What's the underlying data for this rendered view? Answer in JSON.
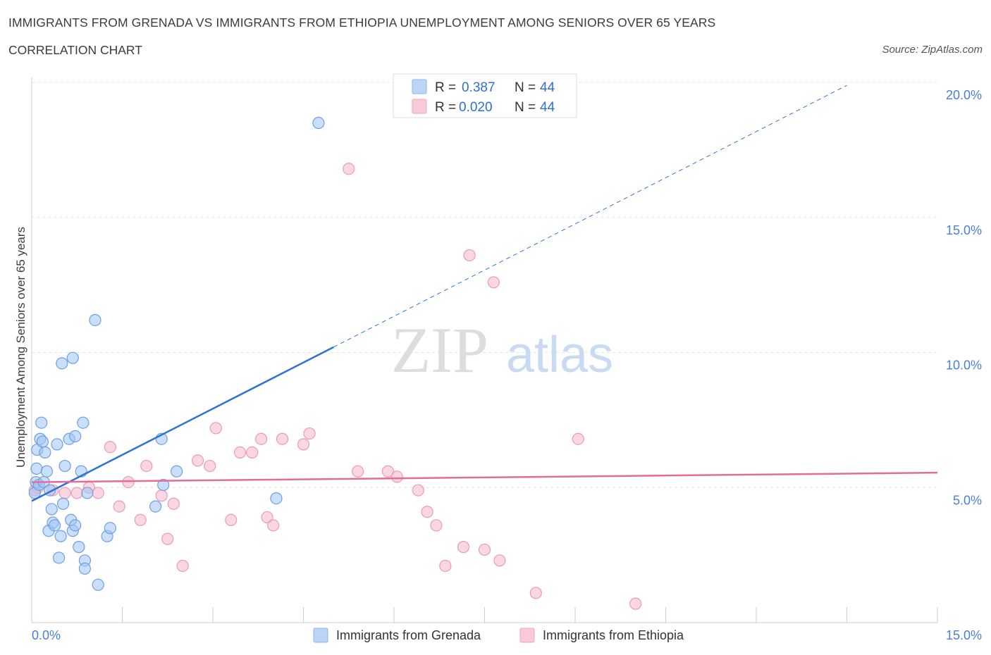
{
  "title": "IMMIGRANTS FROM GRENADA VS IMMIGRANTS FROM ETHIOPIA UNEMPLOYMENT AMONG SENIORS OVER 65 YEARS",
  "subtitle": "CORRELATION CHART",
  "source": "Source: ZipAtlas.com",
  "watermark": {
    "zip": "ZIP",
    "atlas": "atlas"
  },
  "legend": {
    "r_label": "R =",
    "n_label": "N =",
    "series": [
      {
        "name": "Immigrants from Grenada",
        "r": "0.387",
        "n": "44"
      },
      {
        "name": "Immigrants from Ethiopia",
        "r": "0.020",
        "n": "44"
      }
    ]
  },
  "chart_data": {
    "type": "scatter",
    "title": "IMMIGRANTS FROM GRENADA VS IMMIGRANTS FROM ETHIOPIA UNEMPLOYMENT AMONG SENIORS OVER 65 YEARS",
    "xlabel": "",
    "ylabel": "Unemployment Among Seniors over 65 years",
    "xlim": [
      0,
      15
    ],
    "ylim": [
      0,
      20
    ],
    "x_tick_labels": [
      "0.0%",
      "15.0%"
    ],
    "y_ticks": [
      5,
      10,
      15,
      20
    ],
    "y_tick_labels": [
      "5.0%",
      "10.0%",
      "15.0%",
      "20.0%"
    ],
    "colors": {
      "grenada": "#9fc5f8",
      "grenada_line": "#2f72d6",
      "ethiopia": "#f7b6cb",
      "ethiopia_line": "#e56b99"
    },
    "series": [
      {
        "name": "Immigrants from Grenada",
        "r": 0.387,
        "n": 44,
        "trend": {
          "x0": 0.0,
          "y0": 4.5,
          "x1": 5.0,
          "y1": 10.2,
          "dash_to_x": 13.5
        },
        "points": [
          [
            0.05,
            4.8
          ],
          [
            0.07,
            5.2
          ],
          [
            0.08,
            5.7
          ],
          [
            0.09,
            6.4
          ],
          [
            0.12,
            5.1
          ],
          [
            0.14,
            6.8
          ],
          [
            0.16,
            7.4
          ],
          [
            0.18,
            6.7
          ],
          [
            0.2,
            5.2
          ],
          [
            0.22,
            6.3
          ],
          [
            0.25,
            5.6
          ],
          [
            0.28,
            3.4
          ],
          [
            0.3,
            4.9
          ],
          [
            0.33,
            4.2
          ],
          [
            0.35,
            3.7
          ],
          [
            0.38,
            3.6
          ],
          [
            0.42,
            6.6
          ],
          [
            0.45,
            2.4
          ],
          [
            0.48,
            3.2
          ],
          [
            0.5,
            9.6
          ],
          [
            0.52,
            4.4
          ],
          [
            0.55,
            5.8
          ],
          [
            0.62,
            6.8
          ],
          [
            0.65,
            3.8
          ],
          [
            0.68,
            9.8
          ],
          [
            0.68,
            3.4
          ],
          [
            0.72,
            3.6
          ],
          [
            0.72,
            6.9
          ],
          [
            0.78,
            2.8
          ],
          [
            0.82,
            5.6
          ],
          [
            0.85,
            7.4
          ],
          [
            0.88,
            2.3
          ],
          [
            0.88,
            2.0
          ],
          [
            0.92,
            4.8
          ],
          [
            1.05,
            11.2
          ],
          [
            1.1,
            1.4
          ],
          [
            1.25,
            3.2
          ],
          [
            1.3,
            3.5
          ],
          [
            2.05,
            4.3
          ],
          [
            2.15,
            6.8
          ],
          [
            2.18,
            5.1
          ],
          [
            2.4,
            5.6
          ],
          [
            4.05,
            4.6
          ],
          [
            4.75,
            18.5
          ]
        ]
      },
      {
        "name": "Immigrants from Ethiopia",
        "r": 0.02,
        "n": 44,
        "trend": {
          "x0": 0.0,
          "y0": 5.2,
          "x1": 15.0,
          "y1": 5.55
        },
        "points": [
          [
            0.1,
            5.0
          ],
          [
            0.35,
            4.9
          ],
          [
            0.55,
            4.8
          ],
          [
            0.75,
            4.8
          ],
          [
            0.95,
            5.0
          ],
          [
            1.1,
            4.8
          ],
          [
            1.3,
            6.5
          ],
          [
            1.45,
            4.3
          ],
          [
            1.6,
            5.2
          ],
          [
            1.8,
            3.8
          ],
          [
            1.9,
            5.8
          ],
          [
            2.15,
            4.7
          ],
          [
            2.25,
            3.1
          ],
          [
            2.35,
            4.4
          ],
          [
            2.5,
            2.1
          ],
          [
            2.75,
            6.0
          ],
          [
            2.95,
            5.8
          ],
          [
            3.05,
            7.2
          ],
          [
            3.3,
            3.8
          ],
          [
            3.45,
            6.3
          ],
          [
            3.65,
            6.3
          ],
          [
            3.8,
            6.8
          ],
          [
            3.9,
            3.9
          ],
          [
            4.0,
            3.6
          ],
          [
            4.15,
            6.8
          ],
          [
            4.5,
            6.6
          ],
          [
            4.6,
            7.0
          ],
          [
            5.25,
            16.8
          ],
          [
            5.4,
            5.6
          ],
          [
            5.9,
            5.6
          ],
          [
            6.05,
            5.4
          ],
          [
            6.4,
            4.9
          ],
          [
            6.55,
            4.1
          ],
          [
            6.7,
            3.6
          ],
          [
            6.85,
            2.1
          ],
          [
            7.15,
            2.8
          ],
          [
            7.25,
            13.6
          ],
          [
            7.5,
            2.7
          ],
          [
            7.65,
            12.6
          ],
          [
            7.75,
            2.3
          ],
          [
            8.35,
            1.1
          ],
          [
            9.05,
            6.8
          ],
          [
            10.0,
            0.7
          ],
          [
            0.05,
            4.9
          ]
        ]
      }
    ]
  }
}
